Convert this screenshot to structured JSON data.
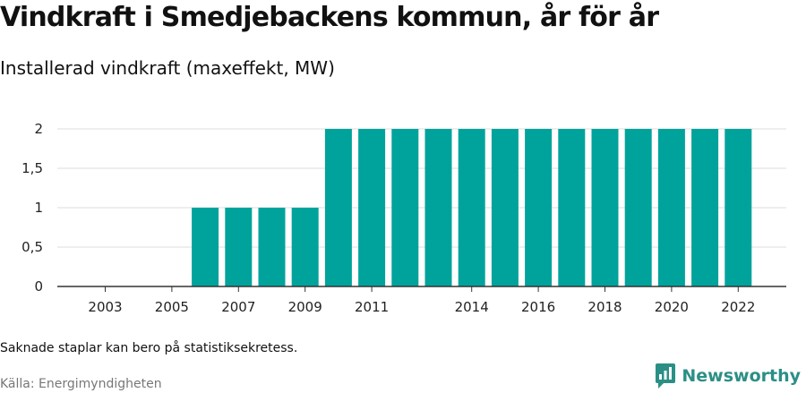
{
  "title": "Vindkraft i Smedjebackens kommun, år för år",
  "subtitle": "Installerad vindkraft (maxeffekt, MW)",
  "note": "Saknade staplar kan bero på statistiksekretess.",
  "source": "Källa: Energimyndigheten",
  "brand": {
    "name": "Newsworthy",
    "icon": "newsworthy-logo-icon"
  },
  "colors": {
    "bar": "#00a39b",
    "grid": "#dddddd",
    "axis": "#333333",
    "brand": "#2b8f86"
  },
  "chart_data": {
    "type": "bar",
    "categories": [
      "2003",
      "2004",
      "2005",
      "2006",
      "2007",
      "2008",
      "2009",
      "2010",
      "2011",
      "2012",
      "2013",
      "2014",
      "2015",
      "2016",
      "2017",
      "2018",
      "2019",
      "2020",
      "2021",
      "2022"
    ],
    "values": [
      0,
      0,
      0,
      1,
      1,
      1,
      1,
      2,
      2,
      2,
      2,
      2,
      2,
      2,
      2,
      2,
      2,
      2,
      2,
      2
    ],
    "x_tick_labels": [
      "2003",
      "2005",
      "2007",
      "2009",
      "2011",
      "2014",
      "2016",
      "2018",
      "2020",
      "2022"
    ],
    "y_ticks": [
      0,
      0.5,
      1,
      1.5,
      2
    ],
    "y_tick_labels": [
      "0",
      "0,5",
      "1",
      "1,5",
      "2"
    ],
    "ylim": [
      0,
      2
    ],
    "grid": true,
    "legend": "none"
  }
}
